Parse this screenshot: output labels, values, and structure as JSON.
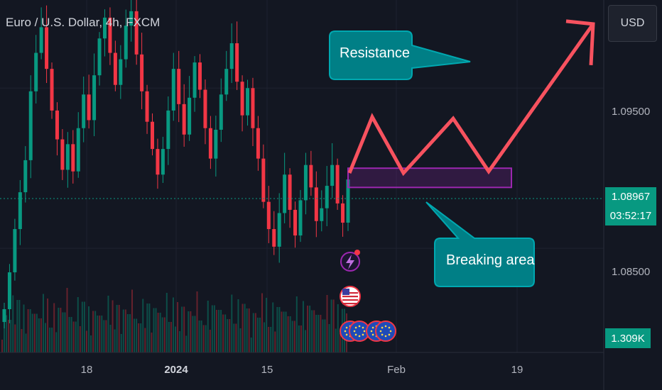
{
  "header": {
    "symbol_title": "Euro / U.S. Dollar, 4h, FXCM",
    "currency_button": "USD"
  },
  "price_axis": {
    "ticks": [
      {
        "label": "1.09500",
        "value": 1.095
      },
      {
        "label": "1.08500",
        "value": 1.085
      }
    ],
    "current_price": "1.08967",
    "countdown": "03:52:17",
    "volume_badge": "1.309K"
  },
  "time_axis": {
    "ticks": [
      {
        "label": "18",
        "bold": false
      },
      {
        "label": "2024",
        "bold": true
      },
      {
        "label": "15",
        "bold": false
      },
      {
        "label": "Feb",
        "bold": false
      },
      {
        "label": "19",
        "bold": false
      }
    ]
  },
  "annotations": {
    "resistance": "Resistance",
    "breaking_area": "Breaking area"
  },
  "colors": {
    "background": "#131722",
    "up": "#089981",
    "down": "#f23645",
    "projection": "#f7525f",
    "zone": "#9c27b0",
    "callout": "#007f86"
  },
  "event_icons": [
    "lightning-icon",
    "us-flag-icon",
    "eu-flag-icon",
    "eu-flag-icon",
    "eu-flag-icon",
    "eu-flag-icon"
  ],
  "chart_data": {
    "type": "candlestick",
    "symbol": "EUR/USD",
    "timeframe": "4h",
    "ylim": [
      1.0785,
      1.1005
    ],
    "price_levels": [
      1.095,
      1.085
    ],
    "current_price": 1.08967,
    "series": [
      {
        "name": "candles_approx",
        "values": [
          1.0812,
          1.0835,
          1.0862,
          1.0885,
          1.0905,
          1.0948,
          1.0972,
          1.0988,
          1.0962,
          1.0936,
          1.0918,
          1.0899,
          1.0915,
          1.0898,
          1.0925,
          1.0946,
          1.093,
          1.0958,
          1.0981,
          1.0994,
          1.0972,
          1.0952,
          1.0968,
          1.0989,
          1.0998,
          1.0971,
          1.0948,
          1.0929,
          1.0912,
          1.0896,
          1.0912,
          1.0936,
          1.0962,
          1.094,
          1.0921,
          1.0944,
          1.0966,
          1.0949,
          1.0925,
          1.0906,
          1.0924,
          1.0946,
          1.0962,
          1.0978,
          1.0954,
          1.0933,
          1.095,
          1.0925,
          1.0906,
          1.0879,
          1.0862,
          1.0851,
          1.0872,
          1.0896,
          1.0874,
          1.0858,
          1.088,
          1.0902,
          1.0888,
          1.0867,
          1.0875,
          1.0889,
          1.0902,
          1.0878,
          1.0866,
          1.0893
        ]
      }
    ],
    "breaking_zone": {
      "from": 1.0888,
      "to": 1.09
    },
    "projection_path": [
      {
        "step": 0,
        "value": 1.0897
      },
      {
        "step": 1,
        "value": 1.0932
      },
      {
        "step": 2,
        "value": 1.0897
      },
      {
        "step": 3,
        "value": 1.0931
      },
      {
        "step": 4,
        "value": 1.0898
      },
      {
        "step": 5,
        "value": 1.099
      }
    ]
  }
}
